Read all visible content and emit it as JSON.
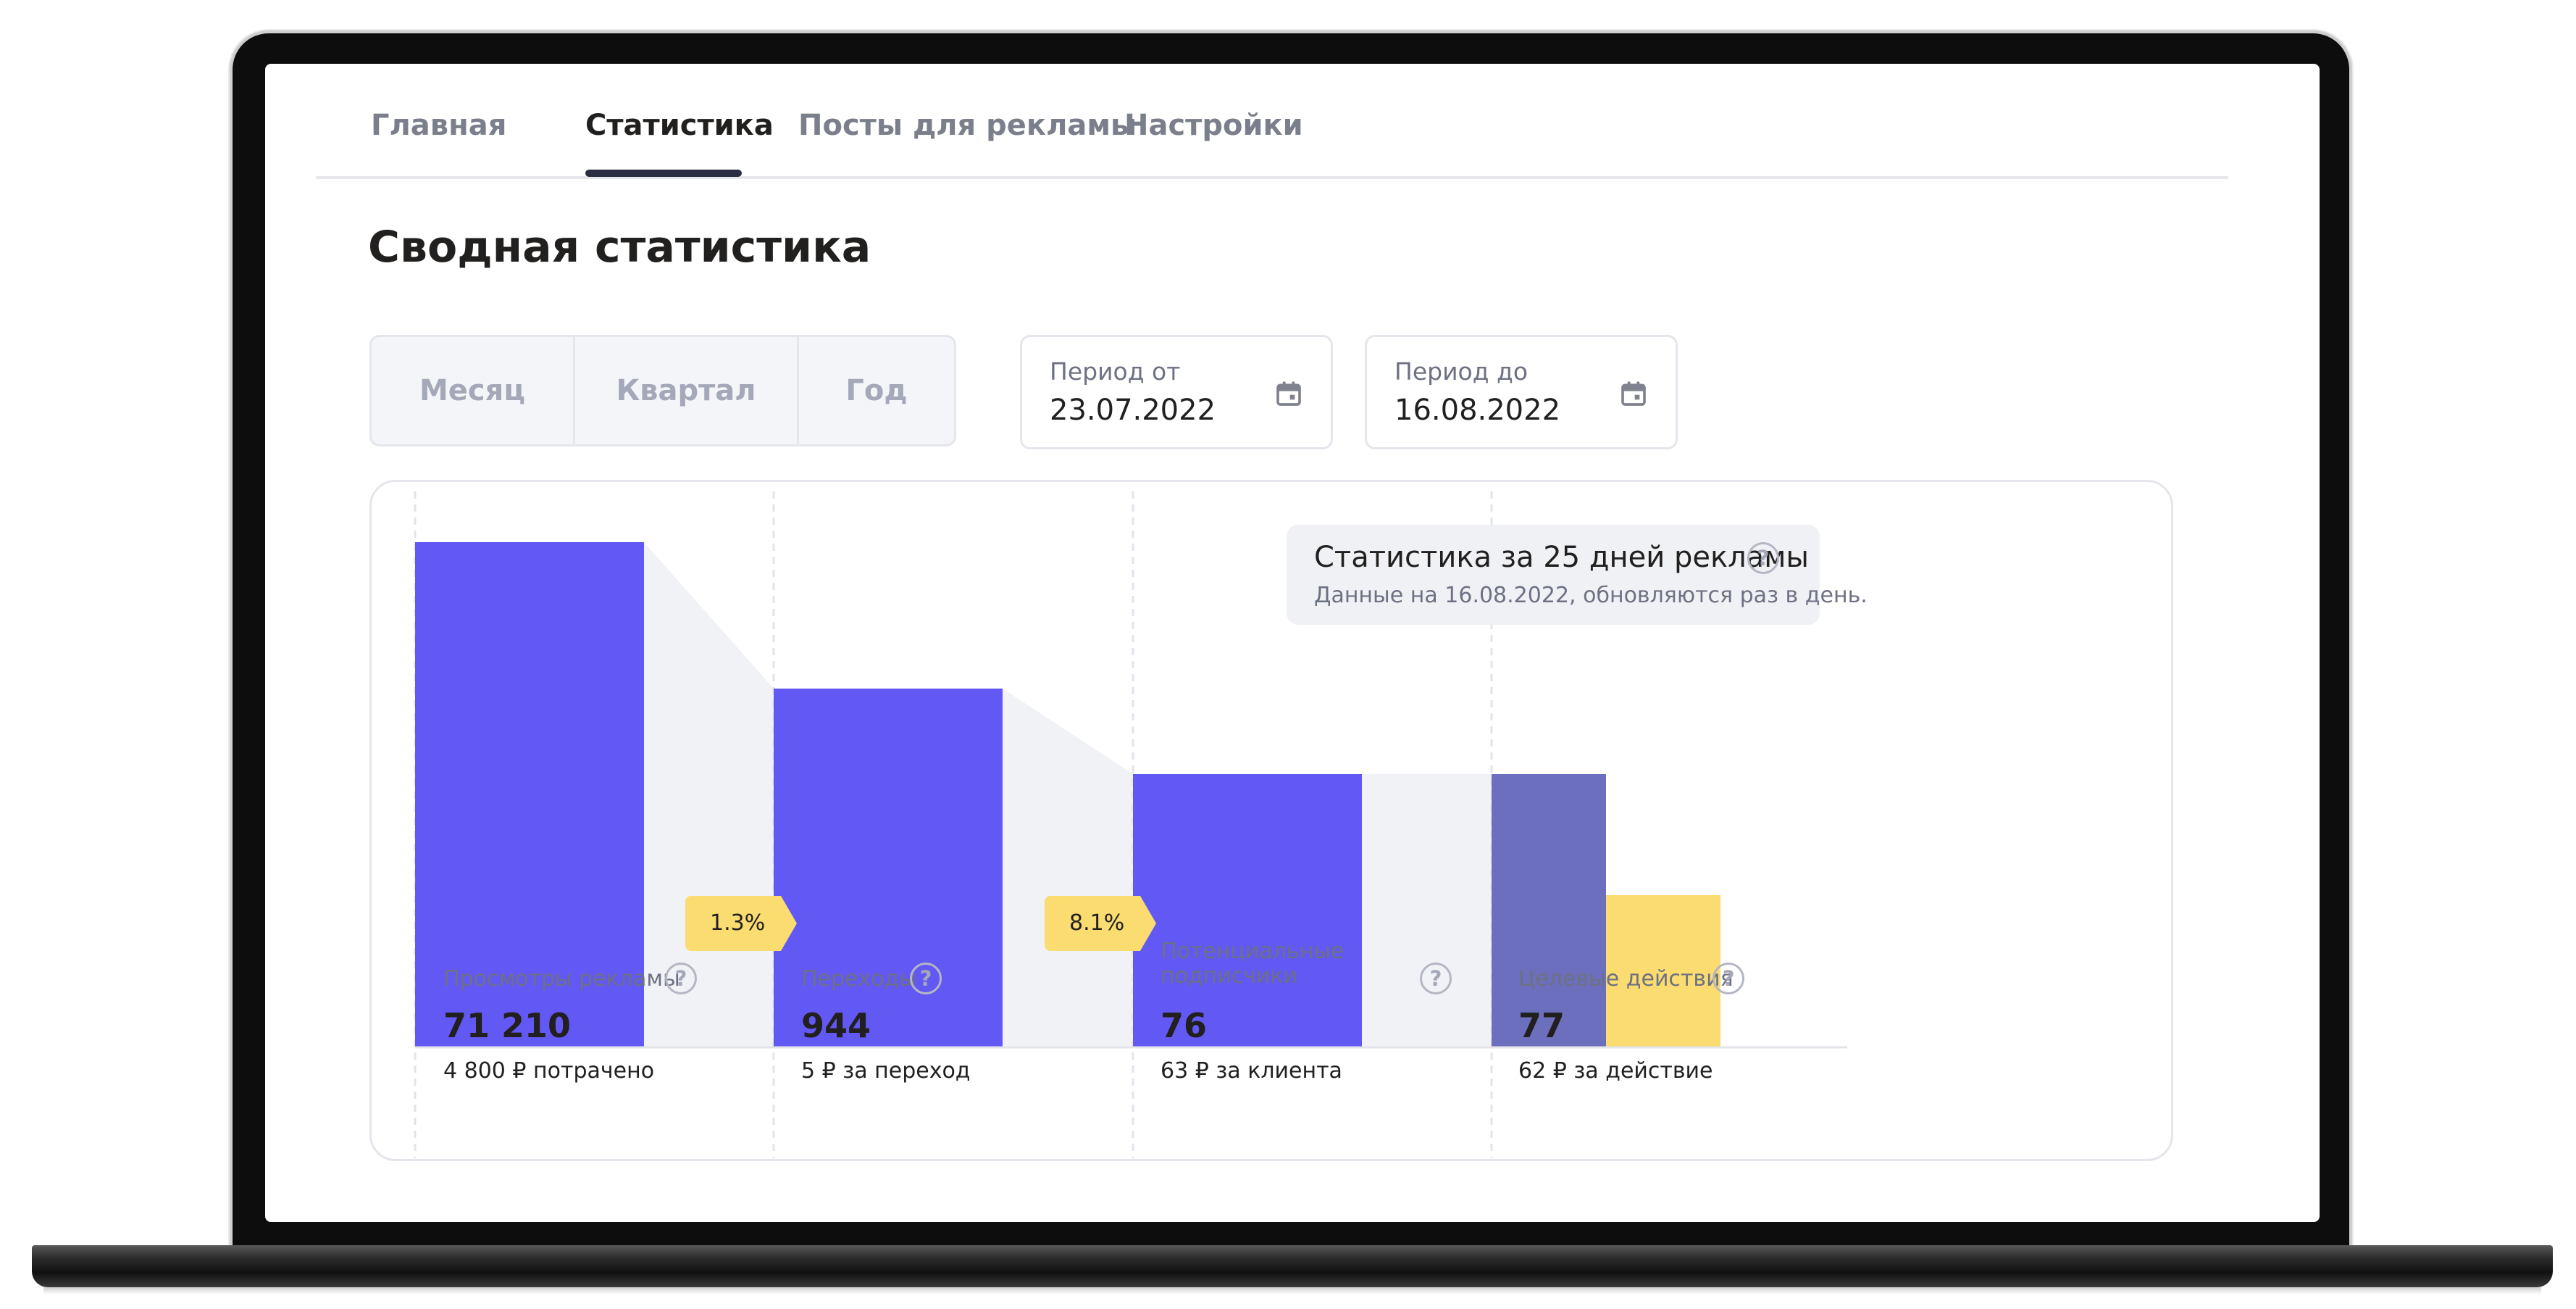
{
  "tabs": [
    {
      "label": "Главная",
      "active": false
    },
    {
      "label": "Статистика",
      "active": true
    },
    {
      "label": "Посты для рекламы",
      "active": false
    },
    {
      "label": "Настройки",
      "active": false
    }
  ],
  "page_title": "Сводная статистика",
  "period_switch": {
    "options": [
      "Месяц",
      "Квартал",
      "Год"
    ]
  },
  "period_from": {
    "label": "Период от",
    "value": "23.07.2022",
    "icon": "calendar-icon"
  },
  "period_to": {
    "label": "Период до",
    "value": "16.08.2022",
    "icon": "calendar-icon"
  },
  "info": {
    "title": "Статистика за 25 дней рекламы",
    "subtitle": "Данные на 16.08.2022, обновляются раз в день.",
    "help": "?"
  },
  "colors": {
    "bar": "#6258f3",
    "bar_muted": "#6c6fbd",
    "accent_yellow": "#fbdc71",
    "funnel_fill": "#f1f2f5"
  },
  "chart_data": {
    "type": "bar",
    "categories": [
      "Просмотры рекламы",
      "Переходы",
      "Потенциальные подписчики",
      "Целевые действия"
    ],
    "series": [
      {
        "values": [
          71210,
          944,
          76,
          77
        ]
      },
      {
        "values": [
          null,
          null,
          null,
          38
        ]
      }
    ],
    "conversions": [
      "1.3%",
      "8.1%"
    ]
  },
  "stats": [
    {
      "label": "Просмотры рекламы",
      "value": "71 210",
      "sub": "4 800 ₽ потрачено",
      "help": "?"
    },
    {
      "label": "Переходы",
      "value": "944",
      "sub": "5 ₽ за переход",
      "help": "?"
    },
    {
      "label": "Потенциальные подписчики",
      "value": "76",
      "sub": "63 ₽ за клиента",
      "help": "?"
    },
    {
      "label": "Целевые действия",
      "value": "77",
      "sub": "62 ₽ за действие",
      "help": "?"
    }
  ]
}
